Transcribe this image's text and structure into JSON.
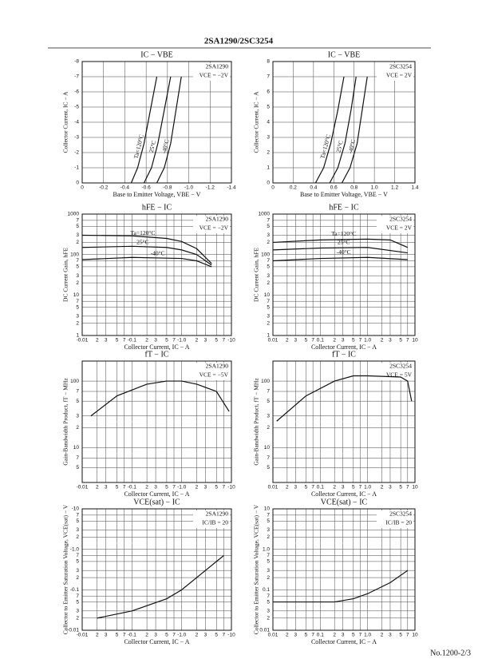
{
  "header": {
    "title": "2SA1290/2SC3254"
  },
  "footer": {
    "text": "No.1200-2/3"
  },
  "chart_data": [
    {
      "type": "line",
      "title": "IC − VBE",
      "device": "2SA1290",
      "condition": "VCE = −2V",
      "xlabel": "Base to Emitter Voltage, VBE − V",
      "ylabel": "Collector Current, IC − A",
      "xlim": [
        0,
        -1.4
      ],
      "ylim": [
        0,
        -8
      ],
      "xticks": [
        0,
        -0.2,
        -0.4,
        -0.6,
        -0.8,
        {
          "value": -1,
          "label": "-1.0"
        },
        -1.2,
        -1.4
      ],
      "yticks": [
        0,
        -1,
        -2,
        -3,
        -4,
        -5,
        -6,
        -7,
        -8
      ],
      "series": [
        {
          "name": "Ta=120°C",
          "color": "#111",
          "x": [
            -0.46,
            -0.52,
            -0.58,
            -0.64,
            -0.7
          ],
          "values": [
            0,
            -1,
            -2.6,
            -4.8,
            -7
          ]
        },
        {
          "name": "25°C",
          "color": "#111",
          "x": [
            -0.58,
            -0.65,
            -0.71,
            -0.77,
            -0.83
          ],
          "values": [
            0,
            -1,
            -2.6,
            -4.8,
            -7
          ]
        },
        {
          "name": "-40°C",
          "color": "#111",
          "x": [
            -0.7,
            -0.77,
            -0.83,
            -0.88,
            -0.93
          ],
          "values": [
            0,
            -1,
            -2.6,
            -4.8,
            -7
          ]
        }
      ]
    },
    {
      "type": "line",
      "title": "IC − VBE",
      "device": "2SC3254",
      "condition": "VCE = 2V",
      "xlabel": "Base to Emitter Voltage, VBE − V",
      "ylabel": "Collector Current, IC − A",
      "xlim": [
        0,
        1.4
      ],
      "ylim": [
        0,
        8
      ],
      "xticks": [
        0,
        0.2,
        0.4,
        0.6,
        0.8,
        {
          "value": 1,
          "label": "1.0"
        },
        1.2,
        1.4
      ],
      "yticks": [
        0,
        1,
        2,
        3,
        4,
        5,
        6,
        7,
        8
      ],
      "series": [
        {
          "name": "Ta=120°C",
          "color": "#111",
          "x": [
            0.42,
            0.5,
            0.57,
            0.64,
            0.7
          ],
          "values": [
            0,
            1,
            2.6,
            4.8,
            7
          ]
        },
        {
          "name": "25°C",
          "color": "#111",
          "x": [
            0.56,
            0.64,
            0.71,
            0.77,
            0.82
          ],
          "values": [
            0,
            1,
            2.6,
            4.8,
            7
          ]
        },
        {
          "name": "-40°C",
          "color": "#111",
          "x": [
            0.68,
            0.76,
            0.83,
            0.88,
            0.93
          ],
          "values": [
            0,
            1,
            2.6,
            4.8,
            7
          ]
        }
      ]
    },
    {
      "type": "line",
      "title": "hFE − IC",
      "device": "2SA1290",
      "condition": "VCE = −2V",
      "xlabel": "Collector Current, IC − A",
      "ylabel": "DC Current Gain, hFE",
      "log_x": true,
      "log_y": true,
      "xlim": [
        -0.01,
        -10
      ],
      "ylim": [
        1,
        1000
      ],
      "xticks": [
        -0.01,
        {
          "value": -0.02,
          "label": "2"
        },
        {
          "value": -0.03,
          "label": "3"
        },
        {
          "value": -0.05,
          "label": "5"
        },
        {
          "value": -0.07,
          "label": "7"
        },
        -0.1,
        {
          "value": -0.2,
          "label": "2"
        },
        {
          "value": -0.3,
          "label": "3"
        },
        {
          "value": -0.5,
          "label": "5"
        },
        {
          "value": -0.7,
          "label": "7"
        },
        {
          "value": -1,
          "label": "-1.0"
        },
        {
          "value": -2,
          "label": "2"
        },
        {
          "value": -3,
          "label": "3"
        },
        {
          "value": -5,
          "label": "5"
        },
        {
          "value": -7,
          "label": "7"
        },
        -10
      ],
      "yticks": [
        1,
        2,
        3,
        5,
        7,
        10,
        {
          "value": 20,
          "label": "2"
        },
        {
          "value": 30,
          "label": "3"
        },
        {
          "value": 50,
          "label": "5"
        },
        {
          "value": 70,
          "label": "7"
        },
        100,
        {
          "value": 200,
          "label": "2"
        },
        {
          "value": 300,
          "label": "3"
        },
        {
          "value": 500,
          "label": "5"
        },
        {
          "value": 700,
          "label": "7"
        },
        1000
      ],
      "series": [
        {
          "name": "Ta=120°C",
          "color": "#111",
          "x": [
            -0.01,
            -0.1,
            -0.5,
            -1,
            -2,
            -4
          ],
          "values": [
            300,
            290,
            250,
            210,
            140,
            60
          ]
        },
        {
          "name": "25°C",
          "color": "#111",
          "x": [
            -0.01,
            -0.1,
            -0.5,
            -1,
            -2,
            -4
          ],
          "values": [
            150,
            160,
            150,
            130,
            100,
            55
          ]
        },
        {
          "name": "-40°C",
          "color": "#111",
          "x": [
            -0.01,
            -0.1,
            -1,
            -2,
            -4
          ],
          "values": [
            75,
            85,
            80,
            70,
            50
          ]
        }
      ]
    },
    {
      "type": "line",
      "title": "hFE − IC",
      "device": "2SC3254",
      "condition": "VCE = 2V",
      "xlabel": "Collector Current, IC − A",
      "ylabel": "DC Current Gain, hFE",
      "log_x": true,
      "log_y": true,
      "xlim": [
        0.01,
        10
      ],
      "ylim": [
        1,
        1000
      ],
      "xticks": [
        0.01,
        {
          "value": 0.02,
          "label": "2"
        },
        {
          "value": 0.03,
          "label": "3"
        },
        {
          "value": 0.05,
          "label": "5"
        },
        {
          "value": 0.07,
          "label": "7"
        },
        0.1,
        {
          "value": 0.2,
          "label": "2"
        },
        {
          "value": 0.3,
          "label": "3"
        },
        {
          "value": 0.5,
          "label": "5"
        },
        {
          "value": 0.7,
          "label": "7"
        },
        {
          "value": 1,
          "label": "1.0"
        },
        2,
        3,
        5,
        7,
        10
      ],
      "yticks": [
        1,
        2,
        3,
        5,
        7,
        10,
        {
          "value": 20,
          "label": "2"
        },
        {
          "value": 30,
          "label": "3"
        },
        {
          "value": 50,
          "label": "5"
        },
        {
          "value": 70,
          "label": "7"
        },
        100,
        {
          "value": 200,
          "label": "2"
        },
        {
          "value": 300,
          "label": "3"
        },
        {
          "value": 500,
          "label": "5"
        },
        {
          "value": 700,
          "label": "7"
        },
        1000
      ],
      "series": [
        {
          "name": "Ta=120°C",
          "color": "#111",
          "x": [
            0.01,
            0.1,
            1,
            3,
            7
          ],
          "values": [
            200,
            230,
            240,
            230,
            150
          ]
        },
        {
          "name": "25°C",
          "color": "#111",
          "x": [
            0.01,
            0.1,
            1,
            7
          ],
          "values": [
            130,
            145,
            150,
            110
          ]
        },
        {
          "name": "-40°C",
          "color": "#111",
          "x": [
            0.01,
            0.1,
            1,
            7
          ],
          "values": [
            70,
            80,
            85,
            75
          ]
        }
      ]
    },
    {
      "type": "line",
      "title": "fT − IC",
      "device": "2SA1290",
      "condition": "VCE = −5V",
      "xlabel": "Collector Current, IC − A",
      "ylabel": "Gain-Bandwidth Product, fT − MHz",
      "log_x": true,
      "log_y": true,
      "xlim": [
        -0.01,
        -10
      ],
      "ylim": [
        3,
        200
      ],
      "xticks": [
        -0.01,
        {
          "value": -0.02,
          "label": "2"
        },
        {
          "value": -0.03,
          "label": "3"
        },
        {
          "value": -0.05,
          "label": "5"
        },
        {
          "value": -0.07,
          "label": "7"
        },
        -0.1,
        {
          "value": -0.2,
          "label": "2"
        },
        {
          "value": -0.3,
          "label": "3"
        },
        {
          "value": -0.5,
          "label": "5"
        },
        {
          "value": -0.7,
          "label": "7"
        },
        {
          "value": -1,
          "label": "-1.0"
        },
        {
          "value": -2,
          "label": "2"
        },
        {
          "value": -3,
          "label": "3"
        },
        {
          "value": -5,
          "label": "5"
        },
        {
          "value": -7,
          "label": "7"
        },
        -10
      ],
      "yticks": [
        5,
        7,
        10,
        {
          "value": 20,
          "label": "2"
        },
        {
          "value": 30,
          "label": "3"
        },
        {
          "value": 50,
          "label": "5"
        },
        {
          "value": 70,
          "label": "7"
        },
        100
      ],
      "series": [
        {
          "name": "",
          "color": "#111",
          "x": [
            -0.015,
            -0.05,
            -0.2,
            -0.5,
            -1,
            -2,
            -5,
            -9
          ],
          "values": [
            30,
            60,
            90,
            100,
            100,
            90,
            70,
            35
          ]
        }
      ]
    },
    {
      "type": "line",
      "title": "fT − IC",
      "device": "2SC3254",
      "condition": "VCE = 5V",
      "xlabel": "Collector Current, IC − A",
      "ylabel": "Gain-Bandwidth Product, fT − MHz",
      "log_x": true,
      "log_y": true,
      "xlim": [
        0.01,
        10
      ],
      "ylim": [
        3,
        200
      ],
      "xticks": [
        0.01,
        {
          "value": 0.02,
          "label": "2"
        },
        {
          "value": 0.03,
          "label": "3"
        },
        {
          "value": 0.05,
          "label": "5"
        },
        {
          "value": 0.07,
          "label": "7"
        },
        0.1,
        {
          "value": 0.2,
          "label": "2"
        },
        {
          "value": 0.3,
          "label": "3"
        },
        {
          "value": 0.5,
          "label": "5"
        },
        {
          "value": 0.7,
          "label": "7"
        },
        {
          "value": 1,
          "label": "1.0"
        },
        2,
        3,
        5,
        7,
        10
      ],
      "yticks": [
        5,
        7,
        10,
        {
          "value": 20,
          "label": "2"
        },
        {
          "value": 30,
          "label": "3"
        },
        {
          "value": 50,
          "label": "5"
        },
        {
          "value": 70,
          "label": "7"
        },
        100
      ],
      "series": [
        {
          "name": "",
          "color": "#111",
          "x": [
            0.012,
            0.05,
            0.2,
            0.5,
            1,
            5,
            7,
            8.5
          ],
          "values": [
            25,
            60,
            100,
            120,
            120,
            115,
            100,
            50
          ]
        }
      ]
    },
    {
      "type": "line",
      "title": "VCE(sat) − IC",
      "device": "2SA1290",
      "condition": "IC/IB = 20",
      "xlabel": "Collector Current, IC − A",
      "ylabel": "Collector to Emitter Saturation Voltage, VCE(sat) − V",
      "log_x": true,
      "log_y": true,
      "xlim": [
        -0.01,
        -10
      ],
      "ylim": [
        -0.01,
        -10
      ],
      "xticks": [
        -0.01,
        {
          "value": -0.02,
          "label": "2"
        },
        {
          "value": -0.03,
          "label": "3"
        },
        {
          "value": -0.05,
          "label": "5"
        },
        {
          "value": -0.07,
          "label": "7"
        },
        -0.1,
        {
          "value": -0.2,
          "label": "2"
        },
        {
          "value": -0.3,
          "label": "3"
        },
        {
          "value": -0.5,
          "label": "5"
        },
        {
          "value": -0.7,
          "label": "7"
        },
        {
          "value": -1,
          "label": "-1.0"
        },
        {
          "value": -2,
          "label": "2"
        },
        {
          "value": -3,
          "label": "3"
        },
        {
          "value": -5,
          "label": "5"
        },
        {
          "value": -7,
          "label": "7"
        },
        -10
      ],
      "yticks": [
        -0.01,
        {
          "value": -0.02,
          "label": "2"
        },
        {
          "value": -0.03,
          "label": "3"
        },
        {
          "value": -0.05,
          "label": "5"
        },
        {
          "value": -0.07,
          "label": "7"
        },
        -0.1,
        {
          "value": -0.2,
          "label": "2"
        },
        {
          "value": -0.3,
          "label": "3"
        },
        {
          "value": -0.5,
          "label": "5"
        },
        {
          "value": -0.7,
          "label": "7"
        },
        {
          "value": -1,
          "label": "-1.0"
        },
        {
          "value": -2,
          "label": "2"
        },
        {
          "value": -3,
          "label": "3"
        },
        {
          "value": -5,
          "label": "5"
        },
        {
          "value": -7,
          "label": "7"
        },
        -10
      ],
      "series": [
        {
          "name": "",
          "color": "#111",
          "x": [
            -0.02,
            -0.1,
            -0.5,
            -1,
            -3,
            -7
          ],
          "values": [
            -0.02,
            -0.03,
            -0.06,
            -0.1,
            -0.3,
            -0.7
          ]
        }
      ]
    },
    {
      "type": "line",
      "title": "VCE(sat) − IC",
      "device": "2SC3254",
      "condition": "IC/IB = 20",
      "xlabel": "Collector Current, IC − A",
      "ylabel": "Collector to Emitter Saturation Voltage, VCE(sat) − V",
      "log_x": true,
      "log_y": true,
      "xlim": [
        0.01,
        10
      ],
      "ylim": [
        0.01,
        10
      ],
      "xticks": [
        0.01,
        {
          "value": 0.02,
          "label": "2"
        },
        {
          "value": 0.03,
          "label": "3"
        },
        {
          "value": 0.05,
          "label": "5"
        },
        {
          "value": 0.07,
          "label": "7"
        },
        0.1,
        {
          "value": 0.2,
          "label": "2"
        },
        {
          "value": 0.3,
          "label": "3"
        },
        {
          "value": 0.5,
          "label": "5"
        },
        {
          "value": 0.7,
          "label": "7"
        },
        {
          "value": 1,
          "label": "1.0"
        },
        2,
        3,
        5,
        7,
        10
      ],
      "yticks": [
        0.01,
        {
          "value": 0.02,
          "label": "2"
        },
        {
          "value": 0.03,
          "label": "3"
        },
        {
          "value": 0.05,
          "label": "5"
        },
        {
          "value": 0.07,
          "label": "7"
        },
        0.1,
        {
          "value": 0.2,
          "label": "2"
        },
        {
          "value": 0.3,
          "label": "3"
        },
        {
          "value": 0.5,
          "label": "5"
        },
        {
          "value": 0.7,
          "label": "7"
        },
        {
          "value": 1,
          "label": "1.0"
        },
        2,
        3,
        5,
        7,
        10
      ],
      "series": [
        {
          "name": "",
          "color": "#111",
          "x": [
            0.01,
            0.2,
            0.5,
            1,
            3,
            7
          ],
          "values": [
            0.05,
            0.05,
            0.06,
            0.08,
            0.15,
            0.3
          ]
        }
      ]
    }
  ]
}
